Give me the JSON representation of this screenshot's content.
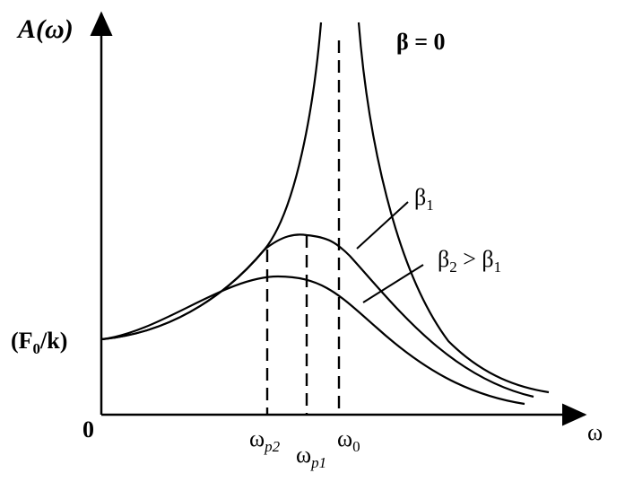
{
  "axes": {
    "y_label": "A(ω)",
    "x_label": "ω",
    "origin": "0",
    "intercept": {
      "open": "(F",
      "sub": "0",
      "close": "/k)"
    }
  },
  "curves": {
    "beta0": "β = 0",
    "beta1": {
      "symbol": "β",
      "sub": "1"
    },
    "beta2": {
      "symbol": "β",
      "sub": "2",
      "relation": " > β",
      "sub2": "1"
    }
  },
  "markers": {
    "omega_p2": {
      "symbol": "ω",
      "sub": "p2"
    },
    "omega_p1": {
      "symbol": "ω",
      "sub": "p1"
    },
    "omega_0": {
      "symbol": "ω",
      "sub": "0"
    }
  }
}
